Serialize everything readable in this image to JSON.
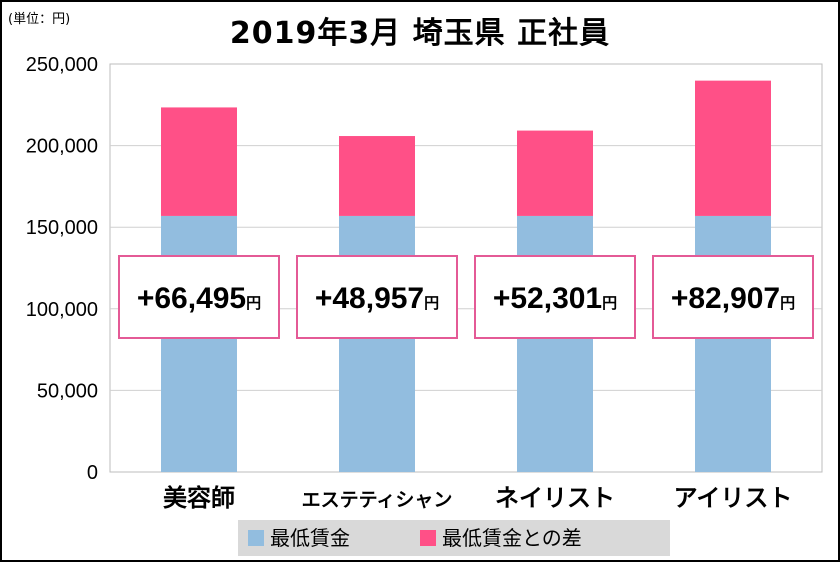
{
  "unit_label": "(単位：円)",
  "colors": {
    "base": "#92BDDF",
    "diff": "#FF5087",
    "label_border": "#E45A96",
    "grid": "#D0D0D0"
  },
  "chart_data": {
    "type": "bar",
    "stacked": true,
    "title": "2019年3月 埼玉県 正社員",
    "categories": [
      "美容師",
      "エステティシャン",
      "ネイリスト",
      "アイリスト"
    ],
    "series": [
      {
        "name": "最低賃金",
        "values": [
          156900,
          156900,
          156900,
          156900
        ]
      },
      {
        "name": "最低賃金との差",
        "values": [
          66495,
          48957,
          52301,
          82907
        ]
      }
    ],
    "data_labels": [
      "+66,495円",
      "+48,957円",
      "+52,301円",
      "+82,907円"
    ],
    "ylim": [
      0,
      250000
    ],
    "y_ticks": [
      "0",
      "50,000",
      "100,000",
      "150,000",
      "200,000",
      "250,000"
    ],
    "grid": "horizontal",
    "legend_position": "bottom"
  }
}
